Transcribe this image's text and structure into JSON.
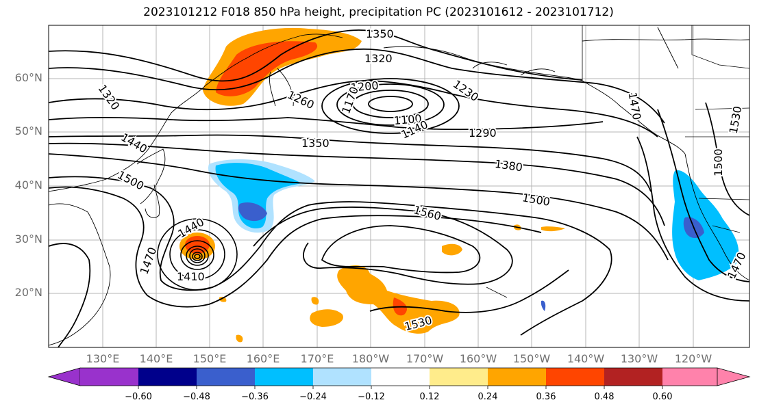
{
  "title": "2023101212 F018 850 hPa height, precipitation PC (2023101612 - 2023101712)",
  "latitude_labels": [
    "60°N",
    "50°N",
    "40°N",
    "30°N",
    "20°N"
  ],
  "longitude_labels": [
    "130°E",
    "140°E",
    "150°E",
    "160°E",
    "170°E",
    "180°W",
    "170°W",
    "160°W",
    "150°W",
    "140°W",
    "130°W",
    "120°W"
  ],
  "contour_labels": [
    "1350",
    "1320",
    "1320",
    "1260",
    "1200",
    "1170",
    "1230",
    "1100",
    "1140",
    "1290",
    "1350",
    "1380",
    "1440",
    "1500",
    "1500",
    "1560",
    "1440",
    "1470",
    "1410",
    "1530",
    "1500",
    "1530",
    "1470",
    "1470"
  ],
  "colorbar": {
    "ticks": [
      "−0.60",
      "−0.48",
      "−0.36",
      "−0.24",
      "−0.12",
      "0.12",
      "0.24",
      "0.36",
      "0.48",
      "0.60"
    ],
    "colors": [
      "#9932cc",
      "#00008b",
      "#3a5fcd",
      "#00bfff",
      "#b0e2ff",
      "#ffffff",
      "#ffec8b",
      "#ffa500",
      "#ff4500",
      "#b22222",
      "#ff82ab"
    ]
  },
  "colors": {
    "positive_high": "#ff4500",
    "positive_mid": "#ffa500",
    "positive_low": "#ffec8b",
    "negative_low": "#b0e2ff",
    "negative_mid": "#00bfff",
    "negative_high": "#3a5fcd"
  }
}
